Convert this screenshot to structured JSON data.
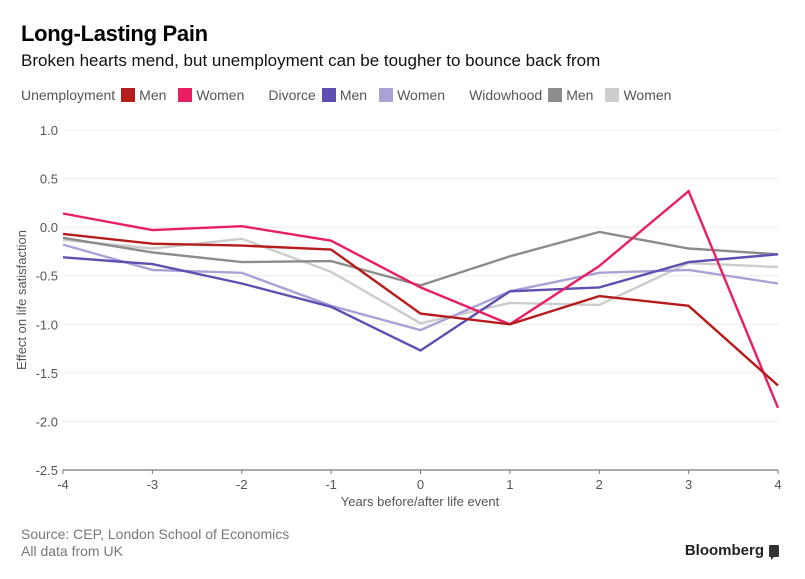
{
  "header": {
    "title": "Long-Lasting Pain",
    "subtitle": "Broken hearts mend, but unemployment can be tougher to bounce back from"
  },
  "legend": {
    "groups": [
      {
        "label": "Unemployment",
        "items": [
          {
            "label": "Men",
            "color": "#b71c1c"
          },
          {
            "label": "Women",
            "color": "#e91e63"
          }
        ]
      },
      {
        "label": "Divorce",
        "items": [
          {
            "label": "Men",
            "color": "#5e4fb0"
          },
          {
            "label": "Women",
            "color": "#a9a2d6"
          }
        ]
      },
      {
        "label": "Widowhood",
        "items": [
          {
            "label": "Men",
            "color": "#8c8c8c"
          },
          {
            "label": "Women",
            "color": "#cccccc"
          }
        ]
      }
    ]
  },
  "footer": {
    "source": "Source: CEP, London School of Economics",
    "note": "All data from UK",
    "brand": "Bloomberg"
  },
  "chart_data": {
    "type": "line",
    "title": "Long-Lasting Pain",
    "subtitle": "Broken hearts mend, but unemployment can be tougher to bounce back from",
    "xlabel": "Years before/after life event",
    "ylabel": "Effect on life satisfaction",
    "x": [
      -4,
      -3,
      -2,
      -1,
      0,
      1,
      2,
      3,
      4
    ],
    "xticks": [
      "-4",
      "-3",
      "-2",
      "-1",
      "0",
      "1",
      "2",
      "3",
      "4"
    ],
    "yticks": [
      "1.0",
      "0.5",
      "0.0",
      "-0.5",
      "-1.0",
      "-1.5",
      "-2.0",
      "-2.5"
    ],
    "ytick_values": [
      1.0,
      0.5,
      0.0,
      -0.5,
      -1.0,
      -1.5,
      -2.0,
      -2.5
    ],
    "xlim": [
      -4,
      4
    ],
    "ylim": [
      -2.5,
      1.0
    ],
    "grid": true,
    "legend_position": "top",
    "series": [
      {
        "name": "Unemployment Men",
        "color": "#b71c1c",
        "values": [
          -0.07,
          -0.17,
          -0.19,
          -0.23,
          -0.89,
          -1.0,
          -0.71,
          -0.81,
          -1.63
        ]
      },
      {
        "name": "Unemployment Women",
        "color": "#e91e63",
        "values": [
          0.14,
          -0.03,
          0.01,
          -0.14,
          -0.62,
          -1.0,
          -0.4,
          0.37,
          -1.86
        ]
      },
      {
        "name": "Divorce Men",
        "color": "#5e4fb0",
        "values": [
          -0.31,
          -0.38,
          -0.58,
          -0.82,
          -1.27,
          -0.66,
          -0.62,
          -0.36,
          -0.28
        ]
      },
      {
        "name": "Divorce Women",
        "color": "#a9a2d6",
        "values": [
          -0.18,
          -0.44,
          -0.47,
          -0.81,
          -1.06,
          -0.66,
          -0.47,
          -0.44,
          -0.58
        ]
      },
      {
        "name": "Widowhood Men",
        "color": "#8c8c8c",
        "values": [
          -0.11,
          -0.26,
          -0.36,
          -0.35,
          -0.6,
          -0.3,
          -0.05,
          -0.22,
          -0.28
        ]
      },
      {
        "name": "Widowhood Women",
        "color": "#cccccc",
        "values": [
          -0.13,
          -0.22,
          -0.12,
          -0.46,
          -0.99,
          -0.78,
          -0.8,
          -0.37,
          -0.41
        ]
      }
    ]
  }
}
